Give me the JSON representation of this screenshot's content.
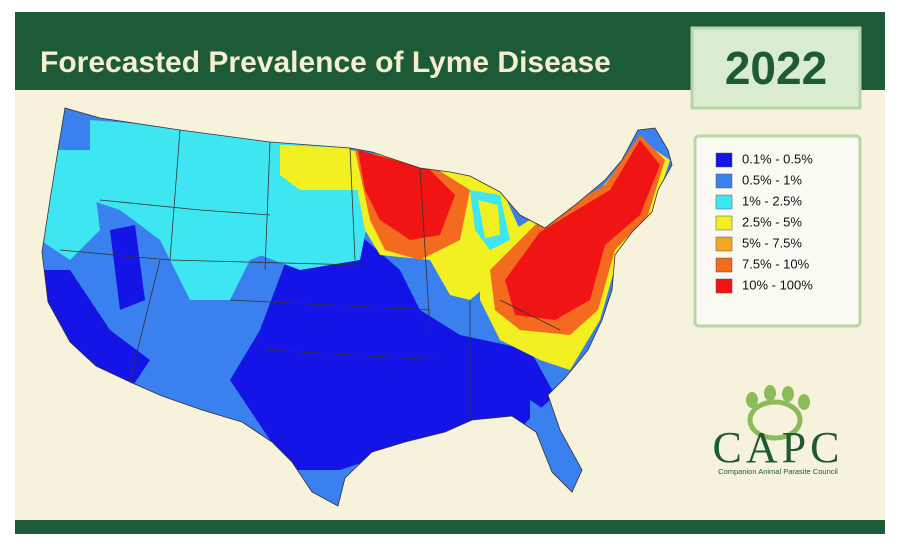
{
  "title": "Forecasted Prevalence of Lyme Disease",
  "year": "2022",
  "legend": {
    "items": [
      {
        "label": "0.1% - 0.5%",
        "color": "#1414e6"
      },
      {
        "label": "0.5% - 1%",
        "color": "#3a80ee"
      },
      {
        "label": "1% - 2.5%",
        "color": "#3ee6f2"
      },
      {
        "label": "2.5% - 5%",
        "color": "#f2f020"
      },
      {
        "label": "5% - 7.5%",
        "color": "#f5a623"
      },
      {
        "label": "7.5% - 10%",
        "color": "#f46a1e"
      },
      {
        "label": "10% - 100%",
        "color": "#f01414"
      }
    ]
  },
  "logo": {
    "name": "CAPC",
    "subtitle": "Companion Animal Parasite Council"
  }
}
